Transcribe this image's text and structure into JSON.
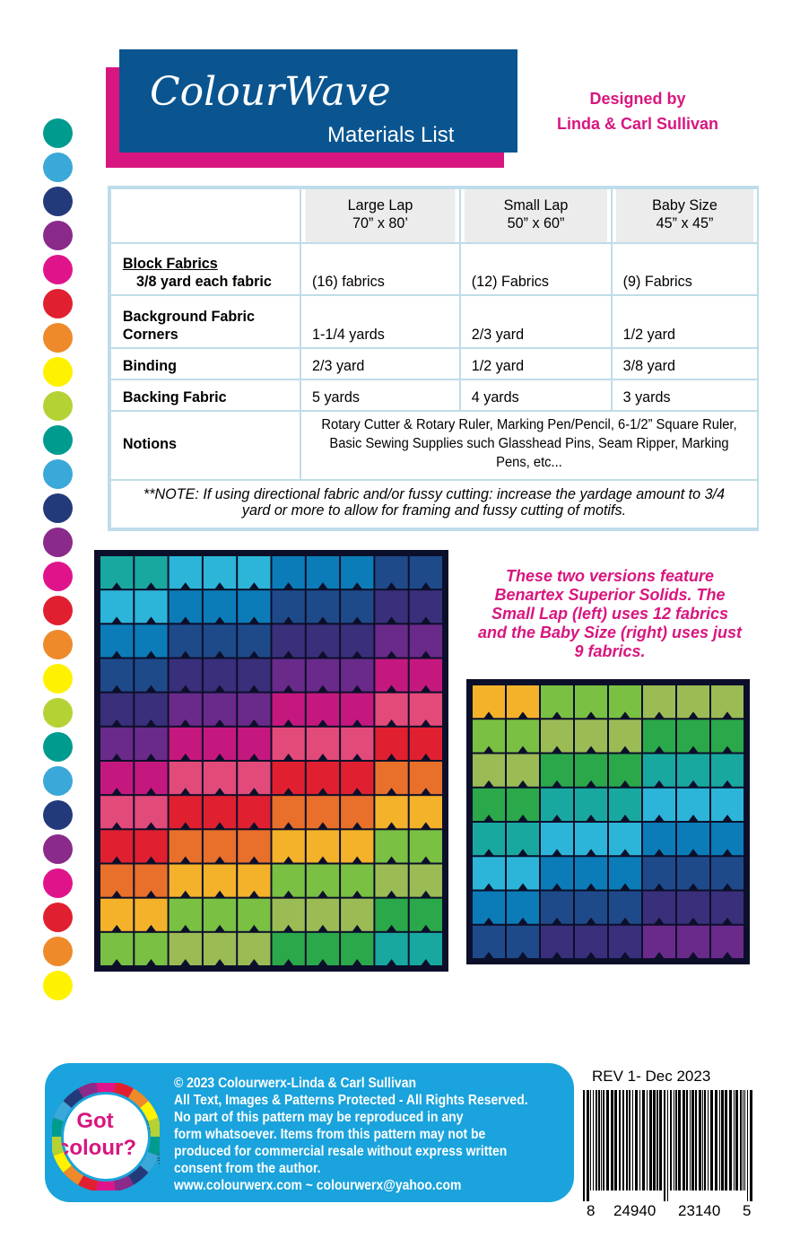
{
  "header": {
    "title": "ColourWave",
    "subtitle": "Materials List",
    "designer": [
      "Designed by",
      "Linda & Carl Sullivan"
    ]
  },
  "table": {
    "columns": [
      {
        "name": "Large Lap",
        "size": "70” x 80’"
      },
      {
        "name": "Small Lap",
        "size": "50” x 60”"
      },
      {
        "name": "Baby Size",
        "size": "45” x 45”"
      }
    ],
    "rows": [
      {
        "label": [
          "Block Fabrics",
          "3/8 yard each fabric"
        ],
        "values": [
          "(16) fabrics",
          "(12) Fabrics",
          "(9) Fabrics"
        ]
      },
      {
        "label": [
          "Background Fabric",
          "Corners"
        ],
        "values": [
          "1-1/4 yards",
          "2/3 yard",
          "1/2 yard"
        ]
      },
      {
        "label": [
          "Binding"
        ],
        "values": [
          "2/3 yard",
          "1/2 yard",
          "3/8 yard"
        ]
      },
      {
        "label": [
          "Backing Fabric"
        ],
        "values": [
          "5 yards",
          "4 yards",
          "3 yards"
        ]
      }
    ],
    "notions": {
      "label": "Notions",
      "text": "Rotary Cutter & Rotary Ruler, Marking Pen/Pencil,  6-1/2” Square Ruler, Basic Sewing Supplies such Glasshead Pins, Seam Ripper, Marking Pens, etc..."
    },
    "note": "**NOTE:  If using directional fabric and/or fussy cutting:  increase the yardage amount to 3/4 yard or more to allow for framing and fussy cutting of motifs."
  },
  "caption": "These two versions feature Benartex Superior Solids. The Small Lap (left) uses 12 fabrics and the Baby Size (right) uses just 9 fabrics.",
  "footer": {
    "logo": [
      "Got",
      "colour?"
    ],
    "website_arc": "colourwerx.com",
    "lines": [
      "© 2023 Colourwerx-Linda & Carl Sullivan",
      "All Text, Images & Patterns Protected - All Rights Reserved.",
      "No part of this pattern may be reproduced  in any",
      "form whatsoever.   Items from this pattern may not be",
      "produced for commercial resale without express written",
      "consent from the author.",
      "www.colourwerx.com ~ colourwerx@yahoo.com"
    ],
    "revision": "REV 1- Dec 2023",
    "barcode_digits": [
      "8",
      "24940",
      "23140",
      "5"
    ]
  }
}
